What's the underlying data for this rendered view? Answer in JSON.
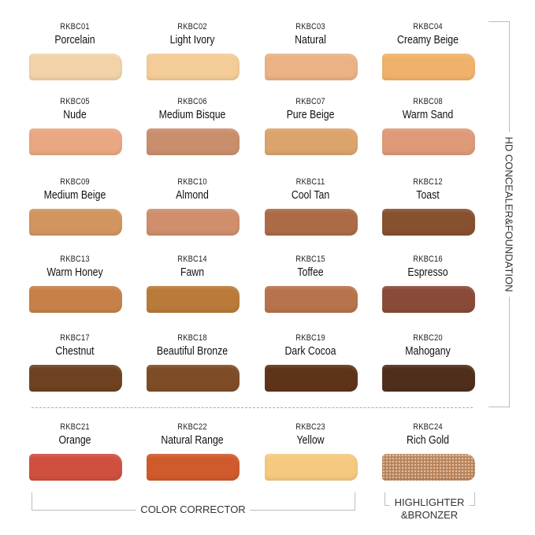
{
  "shades": [
    {
      "code": "RKBC01",
      "name": "Porcelain",
      "color": "#f2d3a8"
    },
    {
      "code": "RKBC02",
      "name": "Light Ivory",
      "color": "#f3cc97"
    },
    {
      "code": "RKBC03",
      "name": "Natural",
      "color": "#eab285"
    },
    {
      "code": "RKBC04",
      "name": "Creamy Beige",
      "color": "#f0b26a"
    },
    {
      "code": "RKBC05",
      "name": "Nude",
      "color": "#e9a783"
    },
    {
      "code": "RKBC06",
      "name": "Medium Bisque",
      "color": "#c98f6c"
    },
    {
      "code": "RKBC07",
      "name": "Pure Beige",
      "color": "#dba46c"
    },
    {
      "code": "RKBC08",
      "name": "Warm Sand",
      "color": "#de9a78"
    },
    {
      "code": "RKBC09",
      "name": "Medium Beige",
      "color": "#d2955f"
    },
    {
      "code": "RKBC10",
      "name": "Almond",
      "color": "#cf8e6c"
    },
    {
      "code": "RKBC11",
      "name": "Cool Tan",
      "color": "#ad6a46"
    },
    {
      "code": "RKBC12",
      "name": "Toast",
      "color": "#87502f"
    },
    {
      "code": "RKBC13",
      "name": "Warm Honey",
      "color": "#c78148"
    },
    {
      "code": "RKBC14",
      "name": "Fawn",
      "color": "#b97a3a"
    },
    {
      "code": "RKBC15",
      "name": "Toffee",
      "color": "#b7734c"
    },
    {
      "code": "RKBC16",
      "name": "Espresso",
      "color": "#8a4a38"
    },
    {
      "code": "RKBC17",
      "name": "Chestnut",
      "color": "#6e4220"
    },
    {
      "code": "RKBC18",
      "name": "Beautiful Bronze",
      "color": "#7e4d27"
    },
    {
      "code": "RKBC19",
      "name": "Dark Cocoa",
      "color": "#5e3319"
    },
    {
      "code": "RKBC20",
      "name": "Mahogany",
      "color": "#4f2e1c"
    },
    {
      "code": "RKBC21",
      "name": "Orange",
      "color": "#cf503e"
    },
    {
      "code": "RKBC22",
      "name": "Natural Range",
      "color": "#cf5a2c"
    },
    {
      "code": "RKBC23",
      "name": "Yellow",
      "color": "#f5c97f"
    },
    {
      "code": "RKBC24",
      "name": "Rich Gold",
      "color": "#b98055",
      "shimmer": true
    }
  ],
  "groups": {
    "foundation": "HD CONCEALER&FOUNDATION",
    "corrector": "COLOR CORRECTOR",
    "highlighter_line1": "HIGHLIGHTER",
    "highlighter_line2": "&BRONZER"
  }
}
